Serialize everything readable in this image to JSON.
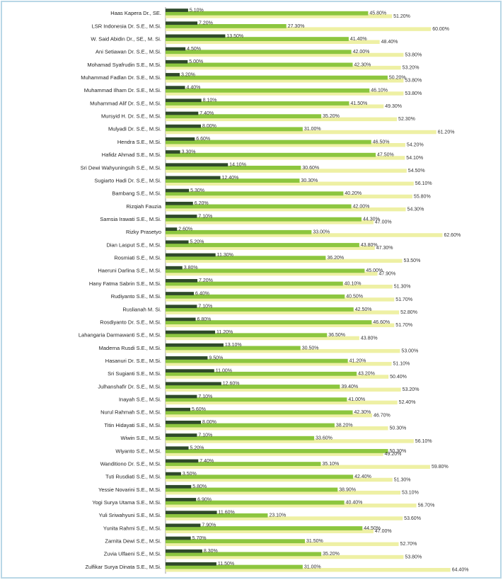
{
  "chart_data": {
    "type": "hbar",
    "categories": [
      "Haas Kapera Dr., SE.",
      "LSR Indonesia Dr. S.E., M.Si.",
      "W. Said Abidin Dr., SE., M. Si.",
      "Ani Setiawan Dr. S.E., M.Si.",
      "Mohamad Syafrudin S.E., M.Si.",
      "Muhammad Fadlan Dr. S.E., M.Si.",
      "Muhammad Ilham Dr. S.E., M.Si.",
      "Muhammad Alif Dr. S.E., M.Si.",
      "Mursyid H. Dr. S.E., M.Si.",
      "Mulyadi Dr. S.E., M.Si.",
      "Hendra S.E., M.Si.",
      "Hafidz Ahmad S.E., M.Si.",
      "Sri Dewi Wahyuningsih S.E., M.Si.",
      "Sugiarto Hadi Dr. S.E., M.Si.",
      "Bambang S.E., M.Si.",
      "Rizqiah Fauzia",
      "Samsia Irawati S.E., M.Si.",
      "Rizky Prasetyo",
      "Dian Lasput S.E., M.Si.",
      "Rosmiati S.E., M.Si.",
      "Haeruni Darlina S.E., M.Si.",
      "Hany Fatma Sabrin S.E., M.Si.",
      "Rudiyanto S.E., M.Si.",
      "Ruslianah M. Si.",
      "Rosdiyanto Dr. S.E., M.Si.",
      "Lahangaria Darmawanti S.E., M.Si.",
      "Maderna Rusdi S.E., M.Si.",
      "Hasanuri Dr. S.E., M.Si.",
      "Sri Sugianti S.E., M.Si.",
      "Julhanshafir Dr. S.E., M.Si.",
      "Inayah S.E., M.Si.",
      "Nurul Rahmah S.E., M.Si.",
      "Titin Hidayati S.E., M.Si.",
      "Wiwin S.E., M.Si.",
      "Wiyanto S.E., M.Si.",
      "Wanditiono Dr. S.E., M.Si.",
      "Tuti Rusdiati S.E., M.Si.",
      "Yessie Novarini S.E., M.Si.",
      "Yogi Surya Utama S.E., M.Si.",
      "Yuli Sriwahyuni S.E., M.Si.",
      "Yunita Rahmi S.E., M.Si.",
      "Zarnita Dewi S.E., M.Si.",
      "Zuvia Ulfaeni S.E., M.Si.",
      "Zulfikar Surya Dinata S.E., M.Si."
    ],
    "series": [
      {
        "color": "#2f4a2a",
        "values": [
          5.1,
          7.2,
          13.5,
          4.5,
          5,
          3.2,
          4.4,
          8.1,
          7.4,
          8,
          6.6,
          3.3,
          14.1,
          12.4,
          5.3,
          6.2,
          7.1,
          2.6,
          5.2,
          11.3,
          3.8,
          7.2,
          6.4,
          7.1,
          6.8,
          11.2,
          13.1,
          9.5,
          11,
          12.6,
          7.1,
          5.6,
          8,
          7.1,
          5.2,
          7.4,
          3.5,
          5.8,
          6.9,
          11.6,
          7.9,
          5.7,
          8.3,
          11.5
        ],
        "value_labels": [
          "5.10%",
          "7.20%",
          "13.50%",
          "4.50%",
          "5.00%",
          "3.20%",
          "4.40%",
          "8.10%",
          "7.40%",
          "8.00%",
          "6.60%",
          "3.30%",
          "14.10%",
          "12.40%",
          "5.30%",
          "6.20%",
          "7.10%",
          "2.60%",
          "5.20%",
          "11.30%",
          "3.80%",
          "7.20%",
          "6.40%",
          "7.10%",
          "6.80%",
          "11.20%",
          "13.10%",
          "9.50%",
          "11.00%",
          "12.60%",
          "7.10%",
          "5.60%",
          "8.00%",
          "7.10%",
          "5.20%",
          "7.40%",
          "3.50%",
          "5.80%",
          "6.90%",
          "11.60%",
          "7.90%",
          "5.70%",
          "8.30%",
          "11.50%"
        ]
      },
      {
        "color": "#8cc63f",
        "values": [
          45.8,
          27.3,
          41.4,
          42,
          42.3,
          50.2,
          46.1,
          41.5,
          35.2,
          31,
          46.5,
          47.5,
          30.6,
          30.3,
          40.2,
          42,
          44.3,
          33,
          43.8,
          36.2,
          45,
          40.1,
          40.5,
          42.5,
          46.6,
          36.5,
          30.5,
          41.2,
          43.2,
          39.4,
          41,
          42.3,
          38.2,
          33.6,
          50.3,
          35.1,
          42.4,
          38.9,
          40.4,
          23.1,
          44.5,
          31.5,
          35.2,
          31
        ],
        "value_labels": [
          "45.80%",
          "27.30%",
          "41.40%",
          "42.00%",
          "42.30%",
          "50.20%",
          "46.10%",
          "41.50%",
          "35.20%",
          "31.00%",
          "46.50%",
          "47.50%",
          "30.60%",
          "30.30%",
          "40.20%",
          "42.00%",
          "44.30%",
          "33.00%",
          "43.80%",
          "36.20%",
          "45.00%",
          "40.10%",
          "40.50%",
          "42.50%",
          "46.60%",
          "36.50%",
          "30.50%",
          "41.20%",
          "43.20%",
          "39.40%",
          "41.00%",
          "42.30%",
          "38.20%",
          "33.60%",
          "50.30%",
          "35.10%",
          "42.40%",
          "38.90%",
          "40.40%",
          "23.10%",
          "44.50%",
          "31.50%",
          "35.20%",
          "31.00%"
        ]
      },
      {
        "color": "#eef0a4",
        "values": [
          51.2,
          60,
          48.4,
          53.8,
          53.2,
          53.8,
          53.8,
          49.3,
          52.3,
          61.2,
          54.2,
          54.1,
          54.5,
          56.1,
          55.8,
          54.3,
          47,
          62.6,
          47.3,
          53.5,
          47.9,
          51.3,
          51.7,
          52.8,
          51.7,
          43.8,
          53,
          51.1,
          50.4,
          53.2,
          52.4,
          46.7,
          50.3,
          56.1,
          49.2,
          59.8,
          51.3,
          53.1,
          56.7,
          53.6,
          47,
          52.7,
          53.8,
          64.4
        ],
        "value_labels": [
          "51.20%",
          "60.00%",
          "48.40%",
          "53.80%",
          "53.20%",
          "53.80%",
          "53.80%",
          "49.30%",
          "52.30%",
          "61.20%",
          "54.20%",
          "54.10%",
          "54.50%",
          "56.10%",
          "55.80%",
          "54.30%",
          "47.00%",
          "62.60%",
          "47.30%",
          "53.50%",
          "47.90%",
          "51.30%",
          "51.70%",
          "52.80%",
          "51.70%",
          "43.80%",
          "53.00%",
          "51.10%",
          "50.40%",
          "53.20%",
          "52.40%",
          "46.70%",
          "50.30%",
          "56.10%",
          "49.20%",
          "59.80%",
          "51.30%",
          "53.10%",
          "56.70%",
          "53.60%",
          "47.00%",
          "52.70%",
          "53.80%",
          "64.40%"
        ]
      }
    ],
    "xlim": [
      0,
      75
    ]
  }
}
